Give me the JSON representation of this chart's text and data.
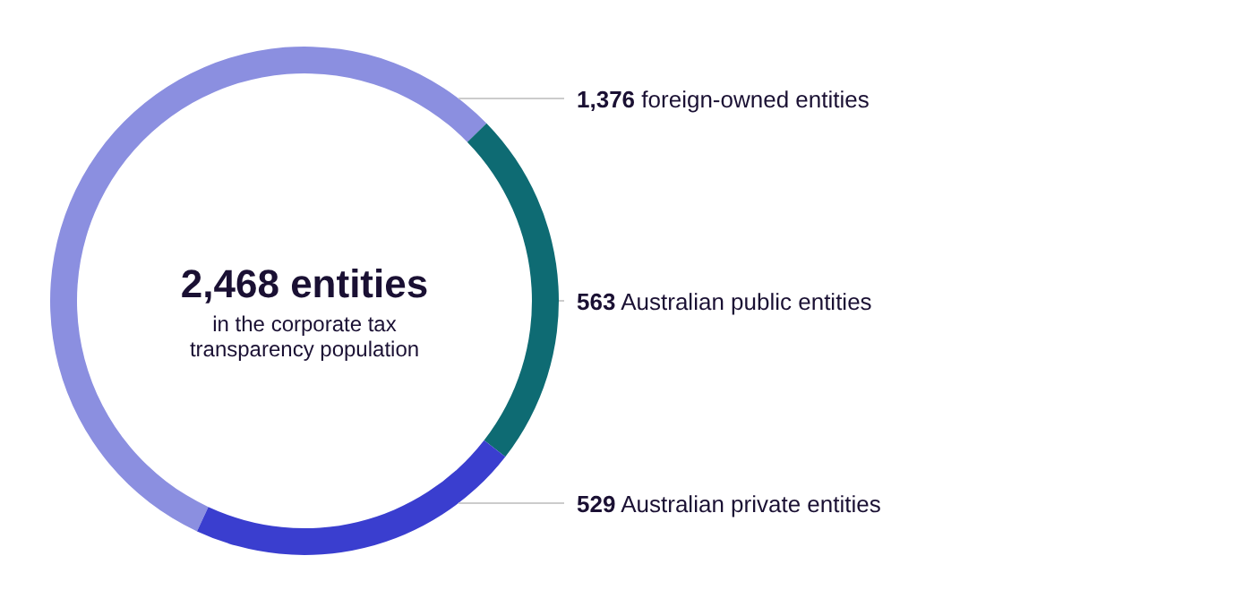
{
  "chart_data": {
    "type": "donut",
    "title": "2,468 entities",
    "subtitle": "in the corporate tax transparency population",
    "categories": [
      "foreign-owned entities",
      "Australian public entities",
      "Australian private entities"
    ],
    "values": [
      1376,
      563,
      529
    ],
    "value_labels": [
      "1,376",
      "563",
      "529"
    ],
    "colors": [
      "#8b8fe0",
      "#0e6b73",
      "#3a3ecf"
    ]
  }
}
